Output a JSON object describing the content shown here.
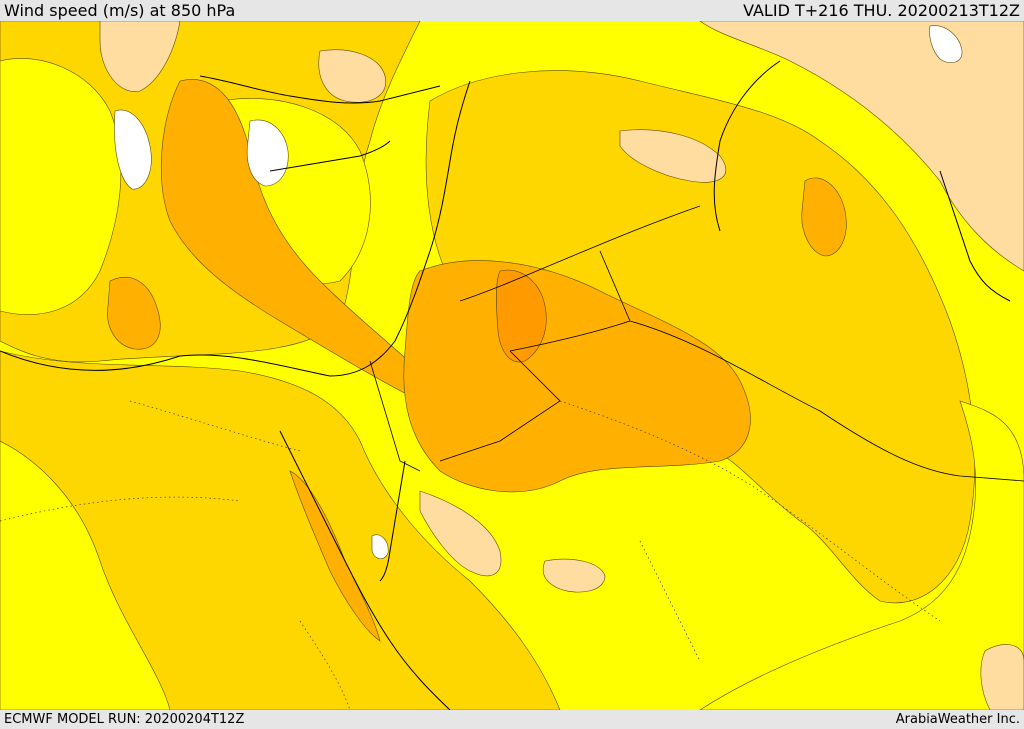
{
  "header": {
    "title": "Wind speed (m/s) at 850 hPa",
    "valid": "VALID T+216 THU. 20200213T12Z"
  },
  "footer": {
    "model_run": "ECMWF MODEL RUN: 20200204T12Z",
    "credit": "ArabiaWeather Inc."
  },
  "colors": {
    "band_0": "#ffffff",
    "band_1": "#ffffa0",
    "band_2": "#ffff00",
    "band_3": "#ffd700",
    "band_4": "#ffb000",
    "band_5": "#ff8c00",
    "band_6": "#ffdca0",
    "coast": "#000000",
    "contour": "#5a4a00"
  }
}
